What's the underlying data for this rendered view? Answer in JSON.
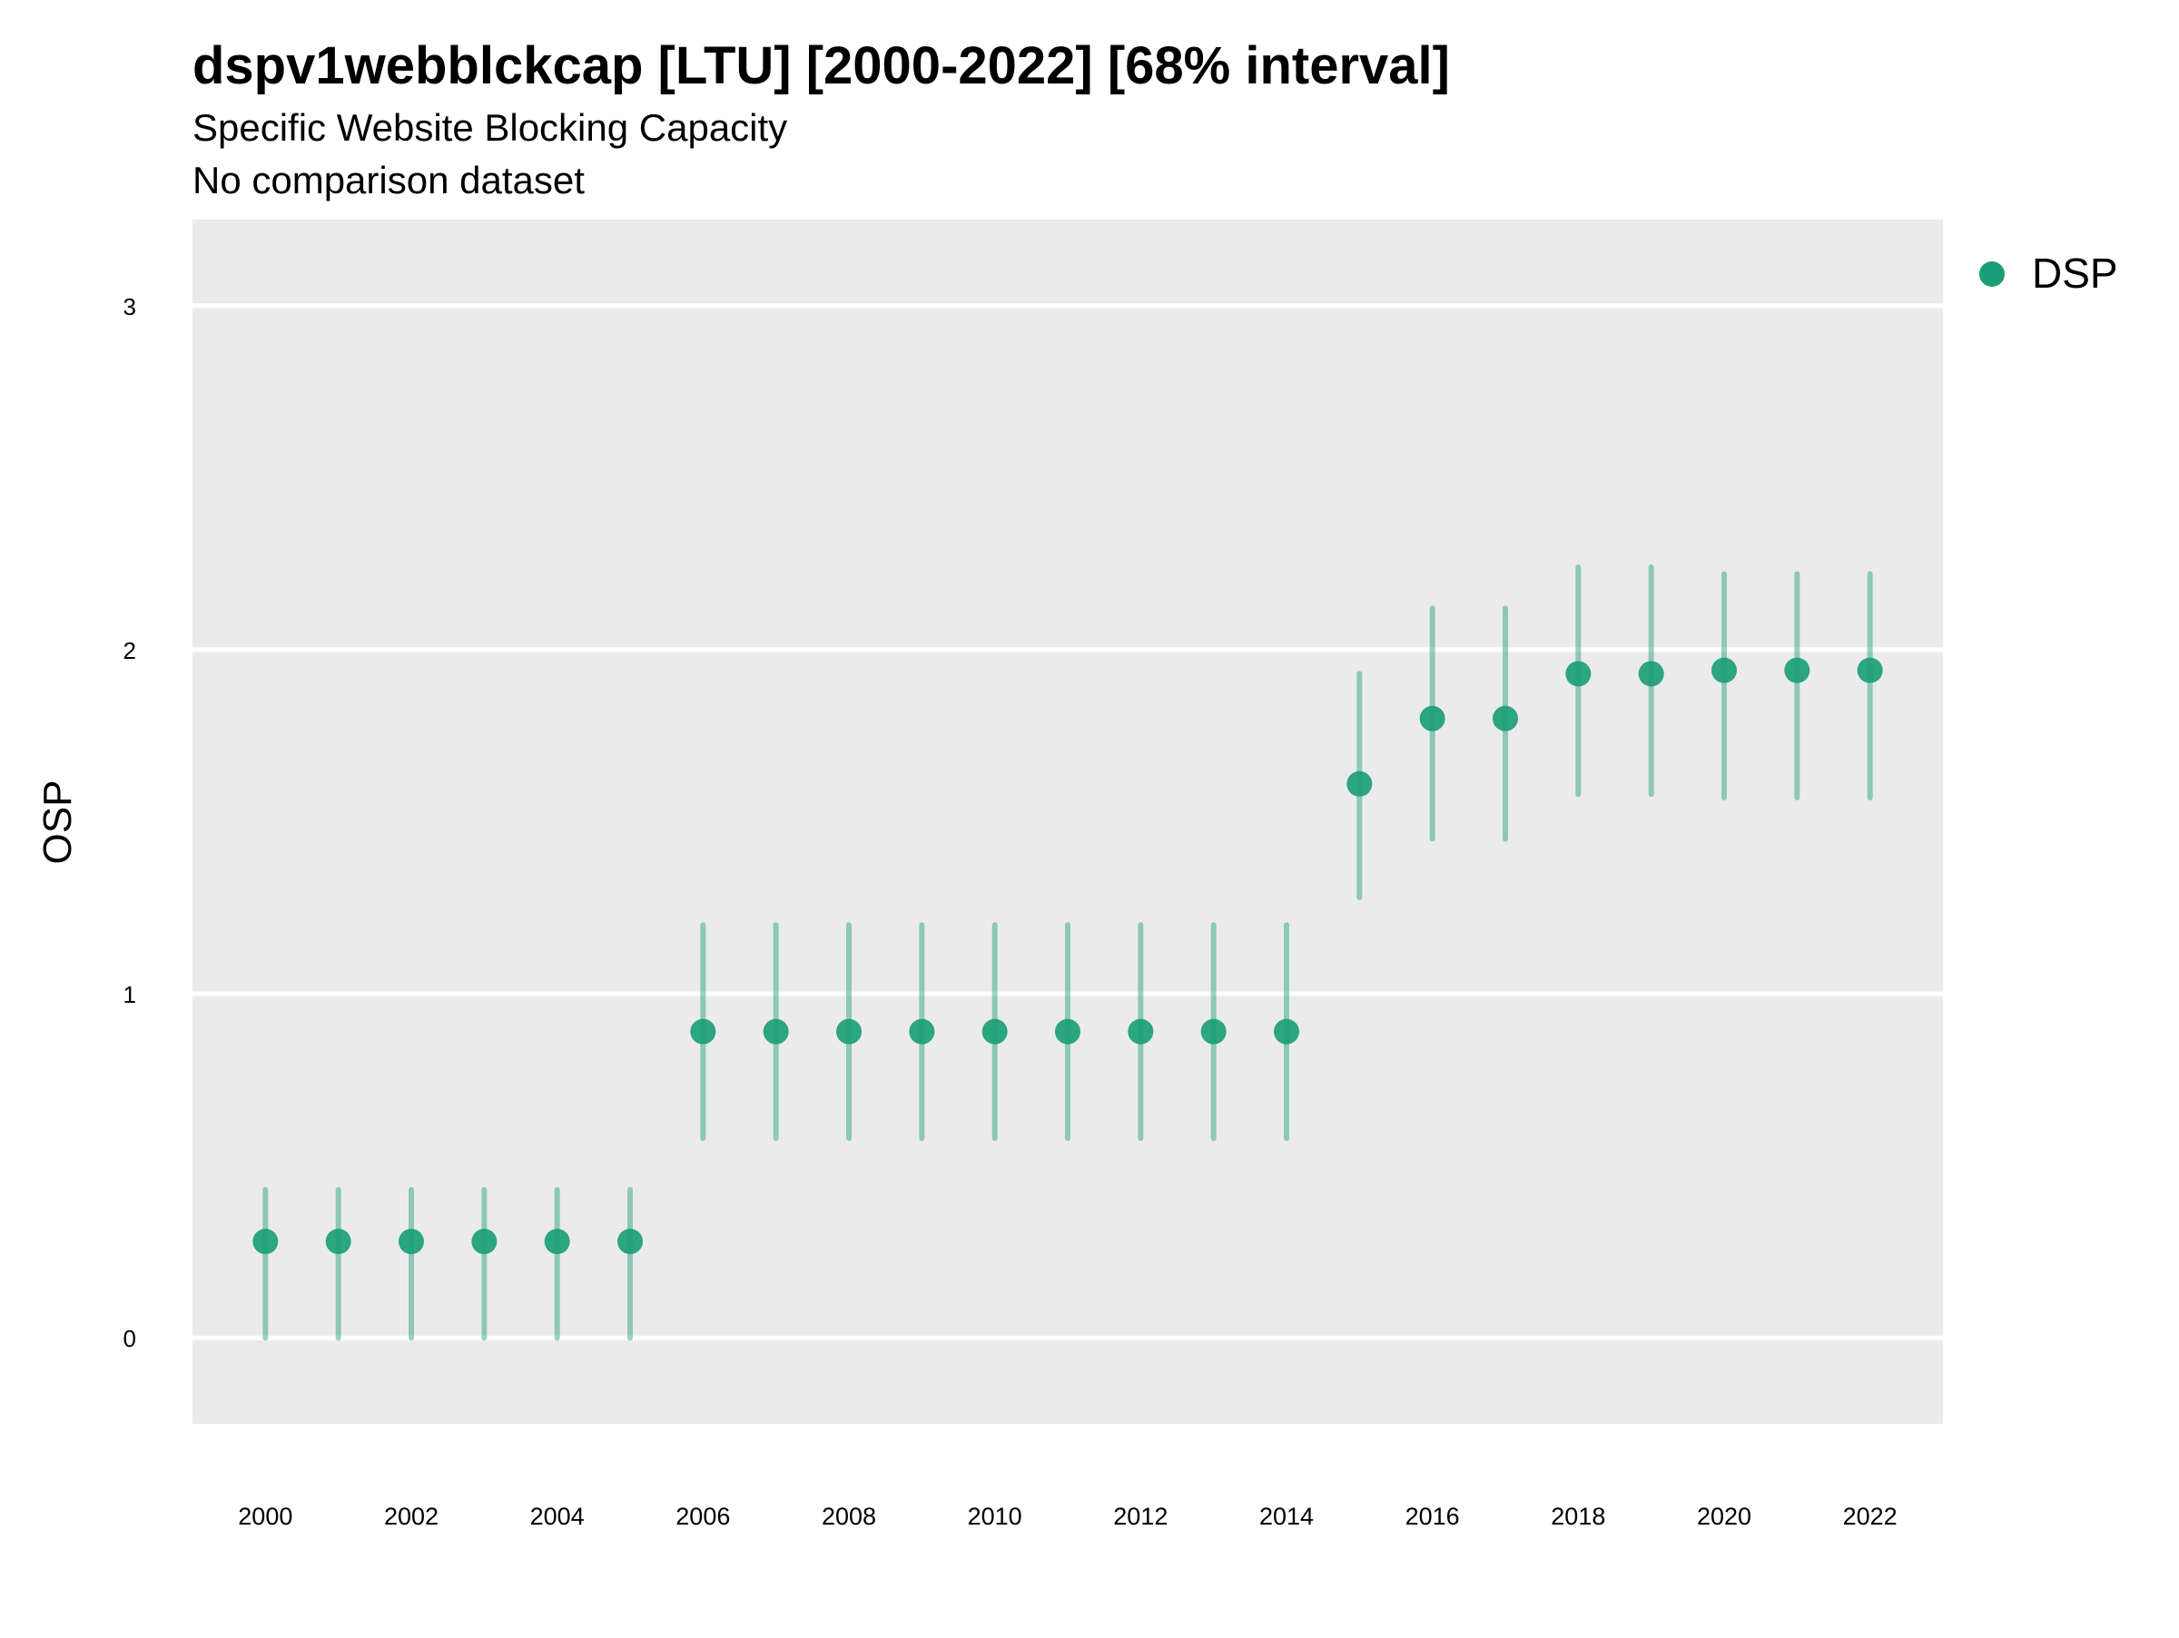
{
  "chart_data": {
    "type": "scatter",
    "title": "dspv1webblckcap [LTU] [2000-2022] [68% interval]",
    "subtitle": "Specific Website Blocking Capacity",
    "caption": "No comparison dataset",
    "xlabel": "",
    "ylabel": "OSP",
    "xlim": [
      1999,
      2023
    ],
    "ylim": [
      -0.25,
      3.25
    ],
    "x_ticks": [
      2000,
      2002,
      2004,
      2006,
      2008,
      2010,
      2012,
      2014,
      2016,
      2018,
      2020,
      2022
    ],
    "y_ticks": [
      0,
      1,
      2,
      3
    ],
    "grid": true,
    "legend_position": "top-right",
    "series": [
      {
        "name": "DSP",
        "color": "#1b9e77",
        "x": [
          2000,
          2001,
          2002,
          2003,
          2004,
          2005,
          2006,
          2007,
          2008,
          2009,
          2010,
          2011,
          2012,
          2013,
          2014,
          2015,
          2016,
          2017,
          2018,
          2019,
          2020,
          2021,
          2022
        ],
        "y": [
          0.28,
          0.28,
          0.28,
          0.28,
          0.28,
          0.28,
          0.89,
          0.89,
          0.89,
          0.89,
          0.89,
          0.89,
          0.89,
          0.89,
          0.89,
          1.61,
          1.8,
          1.8,
          1.93,
          1.93,
          1.94,
          1.94,
          1.94
        ],
        "lower": [
          0.0,
          0.0,
          0.0,
          0.0,
          0.0,
          0.0,
          0.58,
          0.58,
          0.58,
          0.58,
          0.58,
          0.58,
          0.58,
          0.58,
          0.58,
          1.28,
          1.45,
          1.45,
          1.58,
          1.58,
          1.57,
          1.57,
          1.57
        ],
        "upper": [
          0.43,
          0.43,
          0.43,
          0.43,
          0.43,
          0.43,
          1.2,
          1.2,
          1.2,
          1.2,
          1.2,
          1.2,
          1.2,
          1.2,
          1.2,
          1.93,
          2.12,
          2.12,
          2.24,
          2.24,
          2.22,
          2.22,
          2.22
        ]
      }
    ]
  }
}
